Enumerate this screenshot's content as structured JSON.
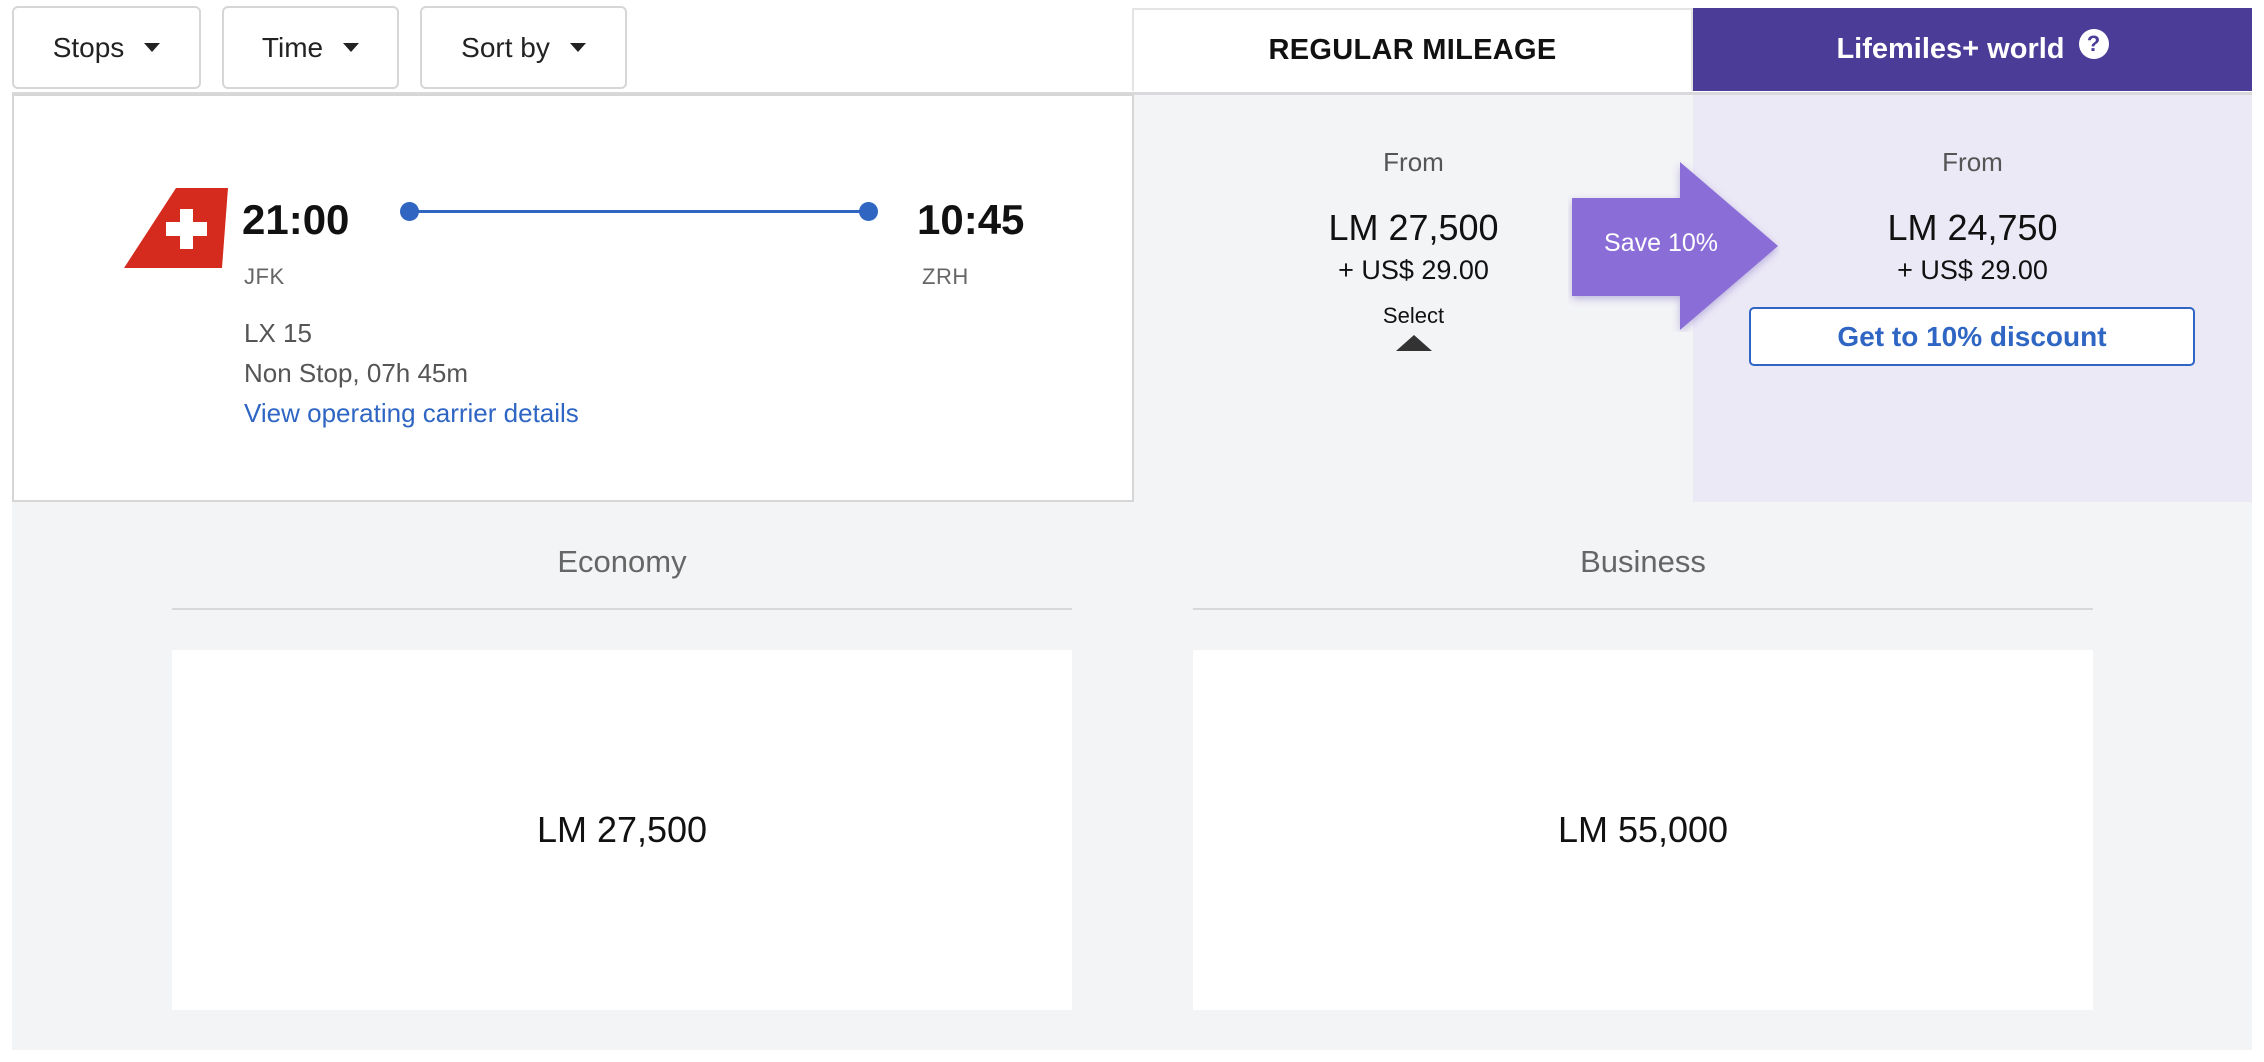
{
  "filters": {
    "stops_label": "Stops",
    "time_label": "Time",
    "sort_label": "Sort by"
  },
  "tabs": {
    "regular_label": "REGULAR MILEAGE",
    "lifemiles_label": "Lifemiles+ world",
    "help_icon": "?"
  },
  "flight": {
    "airline_logo": "swiss-tail-icon",
    "departure_time": "21:00",
    "departure_code": "JFK",
    "arrival_time": "10:45",
    "arrival_code": "ZRH",
    "flight_number": "LX 15",
    "stops_duration": "Non Stop, 07h 45m",
    "carrier_link": "View operating carrier details"
  },
  "regular": {
    "from_label": "From",
    "miles": "LM 27,500",
    "usd": "+ US$ 29.00",
    "select_label": "Select"
  },
  "lifemiles": {
    "from_label": "From",
    "miles": "LM 24,750",
    "usd": "+ US$ 29.00",
    "discount_button": "Get to 10% discount",
    "save_badge": "Save 10%"
  },
  "cabins": [
    {
      "name": "Economy",
      "price": "LM 27,500"
    },
    {
      "name": "Business",
      "price": "LM 55,000"
    }
  ],
  "colors": {
    "accent_purple": "#4b3c98",
    "save_purple": "#8a6dd6",
    "link_blue": "#2f66c4",
    "swiss_red": "#d52b1e"
  }
}
